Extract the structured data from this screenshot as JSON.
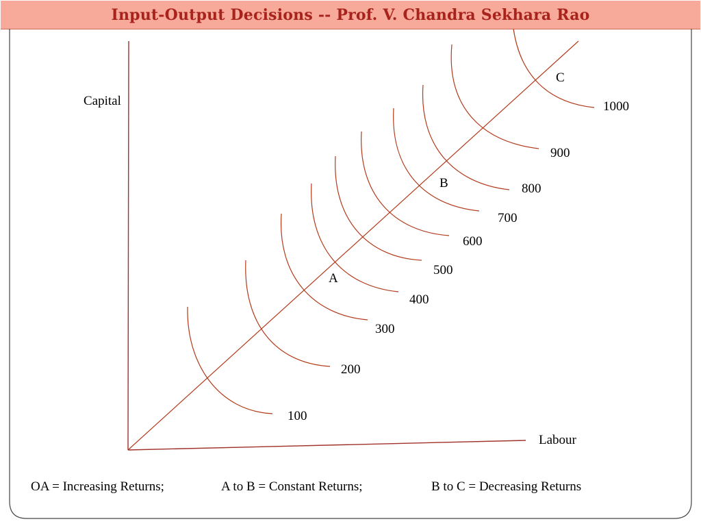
{
  "title": "Input-Output Decisions -- Prof. V. Chandra Sekhara Rao",
  "colors": {
    "title_background": "#f7a99a",
    "title_text": "#a8231c",
    "curve": "#b23a1a",
    "axis": "#a0302a"
  },
  "axes": {
    "y_label": "Capital",
    "x_label": "Labour"
  },
  "isoquant_labels": [
    "100",
    "200",
    "300",
    "400",
    "500",
    "600",
    "700",
    "800",
    "900",
    "1000"
  ],
  "points": {
    "a": "A",
    "b": "B",
    "c": "C"
  },
  "legend": {
    "oa": "OA = Increasing Returns;",
    "ab": "A to B = Constant Returns;",
    "bc": "B to C = Decreasing Returns"
  }
}
